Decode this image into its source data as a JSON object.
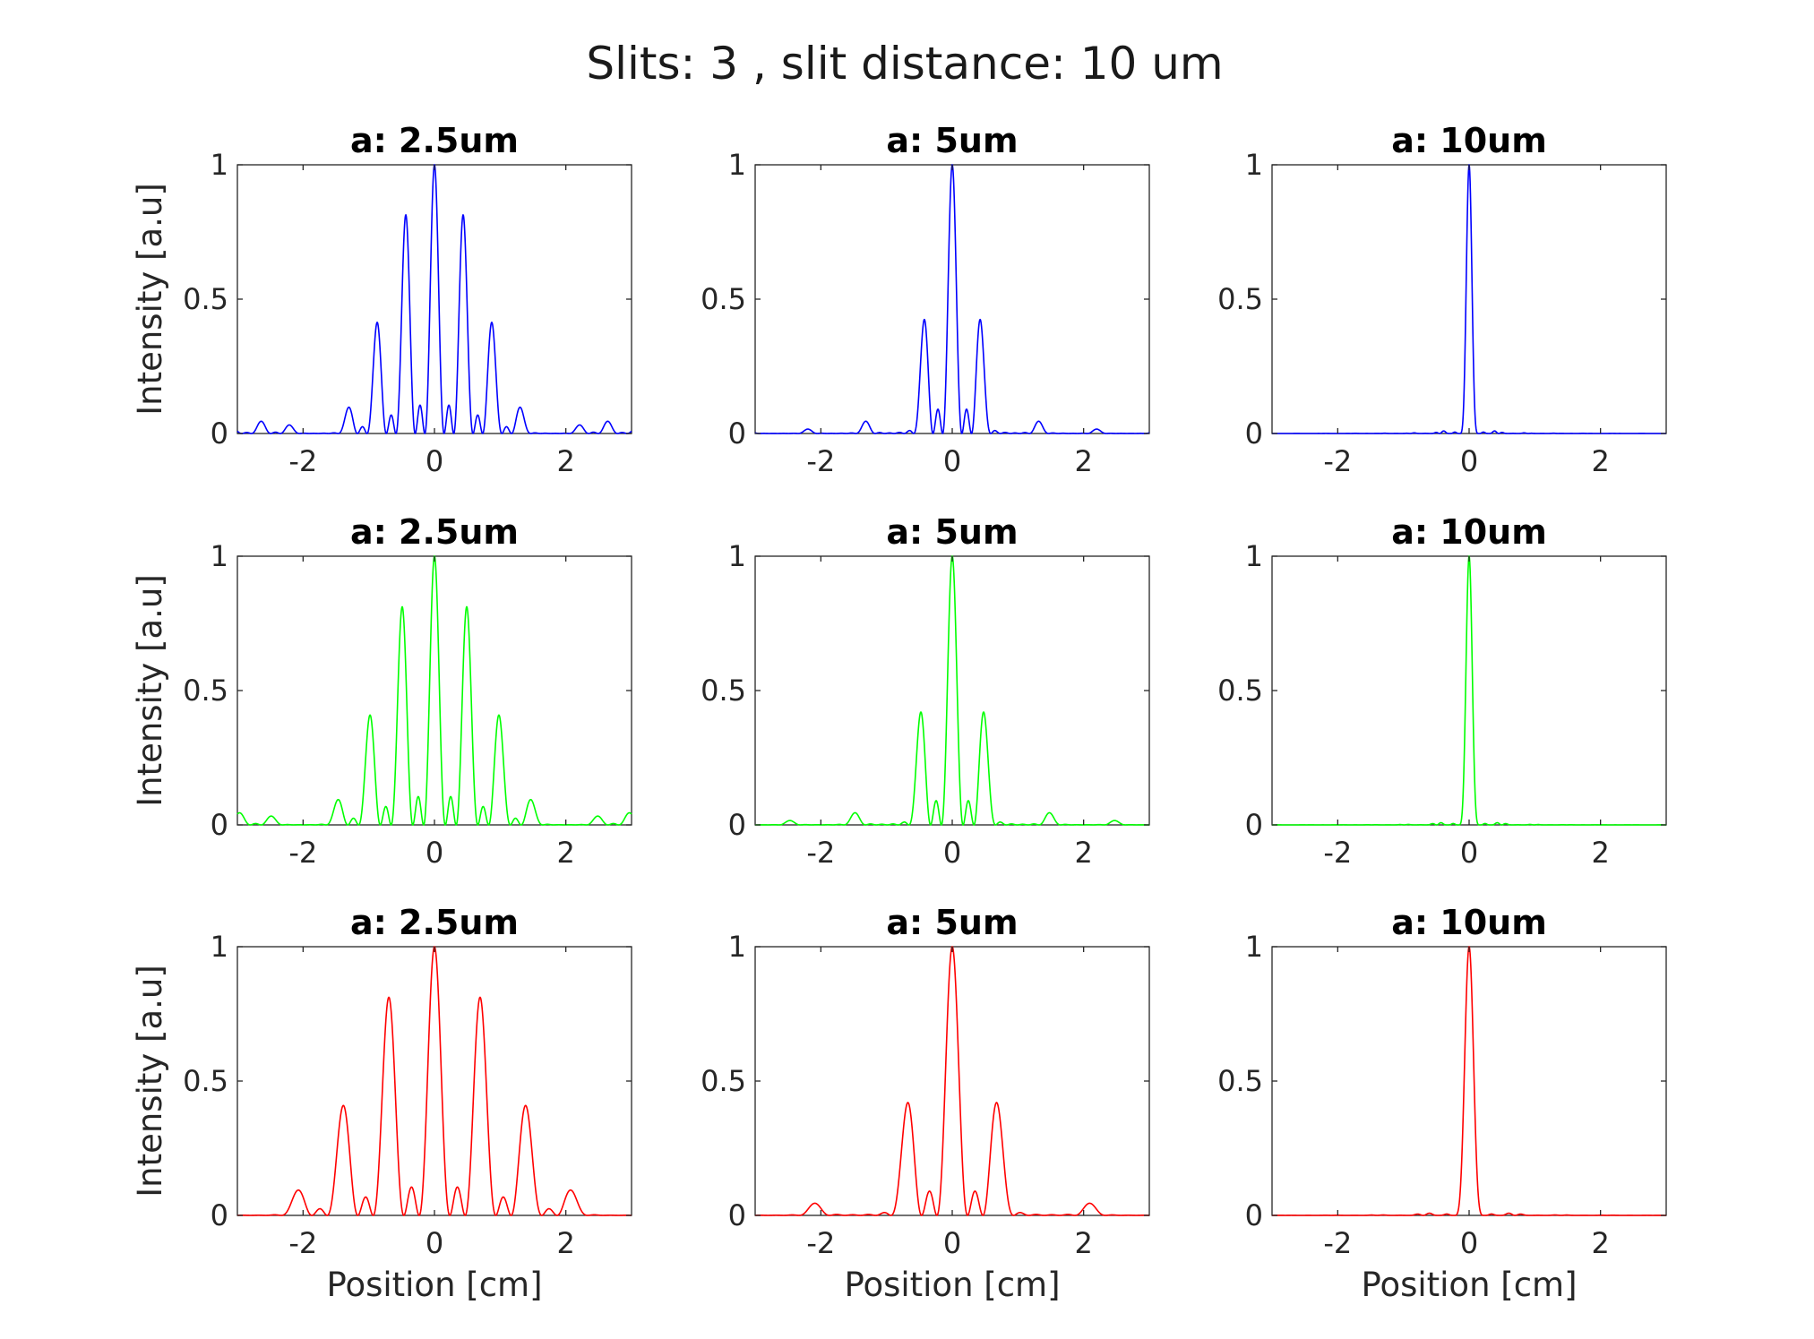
{
  "figure": {
    "title": "Slits: 3 , slit distance: 10 um",
    "xlabel": "Position [cm]",
    "ylabel": "Intensity [a.u]"
  },
  "chart_data": [
    {
      "type": "line",
      "title": "a: 2.5um",
      "xlabel": "",
      "ylabel": "Intensity [a.u]",
      "color": "#0000ff",
      "xlim": [
        -3,
        3
      ],
      "ylim": [
        0,
        1
      ],
      "xticks": [
        -2,
        0,
        2
      ],
      "yticks": [
        0,
        0.5,
        1
      ],
      "xtick_labels": [
        "-2",
        "0",
        "2"
      ],
      "ytick_labels": [
        "0",
        "0.5",
        "1"
      ],
      "grid": false,
      "model": {
        "slits": 3,
        "slit_distance_um": 10,
        "slit_width_um": 2.5,
        "fringe_period_cm": 0.44,
        "first_zero_cm": 1.77
      },
      "peaks": [
        {
          "x": -2.8,
          "y": 0.04
        },
        {
          "x": -2.3,
          "y": 0.03
        },
        {
          "x": -1.33,
          "y": 0.09
        },
        {
          "x": -1.1,
          "y": 0.01
        },
        {
          "x": -0.88,
          "y": 0.41
        },
        {
          "x": -0.66,
          "y": 0.07
        },
        {
          "x": -0.44,
          "y": 0.81
        },
        {
          "x": -0.22,
          "y": 0.1
        },
        {
          "x": 0,
          "y": 1.0
        },
        {
          "x": 0.22,
          "y": 0.1
        },
        {
          "x": 0.44,
          "y": 0.81
        },
        {
          "x": 0.66,
          "y": 0.07
        },
        {
          "x": 0.88,
          "y": 0.41
        },
        {
          "x": 1.1,
          "y": 0.01
        },
        {
          "x": 1.33,
          "y": 0.09
        },
        {
          "x": 2.3,
          "y": 0.03
        },
        {
          "x": 2.8,
          "y": 0.04
        }
      ]
    },
    {
      "type": "line",
      "title": "a: 5um",
      "xlabel": "",
      "ylabel": "",
      "color": "#0000ff",
      "xlim": [
        -3,
        3
      ],
      "ylim": [
        0,
        1
      ],
      "xticks": [
        -2,
        0,
        2
      ],
      "yticks": [
        0,
        0.5,
        1
      ],
      "xtick_labels": [
        "-2",
        "0",
        "2"
      ],
      "ytick_labels": [
        "0",
        "0.5",
        "1"
      ],
      "grid": false,
      "model": {
        "slits": 3,
        "slit_distance_um": 10,
        "slit_width_um": 5,
        "fringe_period_cm": 0.44,
        "first_zero_cm": 0.885
      },
      "peaks": [
        {
          "x": -2.3,
          "y": 0.02
        },
        {
          "x": -1.33,
          "y": 0.04
        },
        {
          "x": -0.44,
          "y": 0.42
        },
        {
          "x": -0.22,
          "y": 0.09
        },
        {
          "x": 0,
          "y": 1.0
        },
        {
          "x": 0.22,
          "y": 0.09
        },
        {
          "x": 0.44,
          "y": 0.42
        },
        {
          "x": 1.33,
          "y": 0.04
        },
        {
          "x": 2.3,
          "y": 0.02
        }
      ]
    },
    {
      "type": "line",
      "title": "a: 10um",
      "xlabel": "",
      "ylabel": "",
      "color": "#0000ff",
      "xlim": [
        -3,
        3
      ],
      "ylim": [
        0,
        1
      ],
      "xticks": [
        -2,
        0,
        2
      ],
      "yticks": [
        0,
        0.5,
        1
      ],
      "xtick_labels": [
        "-2",
        "0",
        "2"
      ],
      "ytick_labels": [
        "0",
        "0.5",
        "1"
      ],
      "grid": false,
      "model": {
        "slits": 3,
        "slit_distance_um": 10,
        "slit_width_um": 10,
        "fringe_period_cm": 0.44,
        "first_zero_cm": 0.15
      },
      "peaks": [
        {
          "x": -0.22,
          "y": 0.04
        },
        {
          "x": 0,
          "y": 1.0
        },
        {
          "x": 0.22,
          "y": 0.04
        }
      ]
    },
    {
      "type": "line",
      "title": "a: 2.5um",
      "xlabel": "",
      "ylabel": "Intensity [a.u]",
      "color": "#00ff00",
      "xlim": [
        -3,
        3
      ],
      "ylim": [
        0,
        1
      ],
      "xticks": [
        -2,
        0,
        2
      ],
      "yticks": [
        0,
        0.5,
        1
      ],
      "xtick_labels": [
        "-2",
        "0",
        "2"
      ],
      "ytick_labels": [
        "0",
        "0.5",
        "1"
      ],
      "grid": false,
      "model": {
        "slits": 3,
        "slit_distance_um": 10,
        "slit_width_um": 2.5,
        "fringe_period_cm": 0.495,
        "first_zero_cm": 1.98
      },
      "peaks": [
        {
          "x": -2.6,
          "y": 0.03
        },
        {
          "x": -1.48,
          "y": 0.09
        },
        {
          "x": -0.99,
          "y": 0.41
        },
        {
          "x": -0.74,
          "y": 0.07
        },
        {
          "x": -0.5,
          "y": 0.81
        },
        {
          "x": -0.25,
          "y": 0.1
        },
        {
          "x": 0,
          "y": 1.0
        },
        {
          "x": 0.25,
          "y": 0.1
        },
        {
          "x": 0.5,
          "y": 0.81
        },
        {
          "x": 0.74,
          "y": 0.07
        },
        {
          "x": 0.99,
          "y": 0.41
        },
        {
          "x": 1.48,
          "y": 0.09
        },
        {
          "x": 2.6,
          "y": 0.03
        }
      ]
    },
    {
      "type": "line",
      "title": "a: 5um",
      "xlabel": "",
      "ylabel": "",
      "color": "#00ff00",
      "xlim": [
        -3,
        3
      ],
      "ylim": [
        0,
        1
      ],
      "xticks": [
        -2,
        0,
        2
      ],
      "yticks": [
        0,
        0.5,
        1
      ],
      "xtick_labels": [
        "-2",
        "0",
        "2"
      ],
      "ytick_labels": [
        "0",
        "0.5",
        "1"
      ],
      "grid": false,
      "model": {
        "slits": 3,
        "slit_distance_um": 10,
        "slit_width_um": 5,
        "fringe_period_cm": 0.495,
        "first_zero_cm": 0.99
      },
      "peaks": [
        {
          "x": -2.6,
          "y": 0.01
        },
        {
          "x": -1.48,
          "y": 0.04
        },
        {
          "x": -0.5,
          "y": 0.42
        },
        {
          "x": -0.25,
          "y": 0.09
        },
        {
          "x": 0,
          "y": 1.0
        },
        {
          "x": 0.25,
          "y": 0.09
        },
        {
          "x": 0.5,
          "y": 0.42
        },
        {
          "x": 1.48,
          "y": 0.04
        },
        {
          "x": 2.6,
          "y": 0.01
        }
      ]
    },
    {
      "type": "line",
      "title": "a: 10um",
      "xlabel": "",
      "ylabel": "",
      "color": "#00ff00",
      "xlim": [
        -3,
        3
      ],
      "ylim": [
        0,
        1
      ],
      "xticks": [
        -2,
        0,
        2
      ],
      "yticks": [
        0,
        0.5,
        1
      ],
      "xtick_labels": [
        "-2",
        "0",
        "2"
      ],
      "ytick_labels": [
        "0",
        "0.5",
        "1"
      ],
      "grid": false,
      "model": {
        "slits": 3,
        "slit_distance_um": 10,
        "slit_width_um": 10,
        "fringe_period_cm": 0.495,
        "first_zero_cm": 0.165
      },
      "peaks": [
        {
          "x": -0.25,
          "y": 0.04
        },
        {
          "x": 0,
          "y": 1.0
        },
        {
          "x": 0.25,
          "y": 0.04
        }
      ]
    },
    {
      "type": "line",
      "title": "a: 2.5um",
      "xlabel": "Position [cm]",
      "ylabel": "Intensity [a.u]",
      "color": "#ff0000",
      "xlim": [
        -3,
        3
      ],
      "ylim": [
        0,
        1
      ],
      "xticks": [
        -2,
        0,
        2
      ],
      "yticks": [
        0,
        0.5,
        1
      ],
      "xtick_labels": [
        "-2",
        "0",
        "2"
      ],
      "ytick_labels": [
        "0",
        "0.5",
        "1"
      ],
      "grid": false,
      "model": {
        "slits": 3,
        "slit_distance_um": 10,
        "slit_width_um": 2.5,
        "fringe_period_cm": 0.7,
        "first_zero_cm": 2.8
      },
      "peaks": [
        {
          "x": -2.1,
          "y": 0.09
        },
        {
          "x": -1.4,
          "y": 0.41
        },
        {
          "x": -1.05,
          "y": 0.07
        },
        {
          "x": -0.7,
          "y": 0.81
        },
        {
          "x": -0.35,
          "y": 0.1
        },
        {
          "x": 0,
          "y": 1.0
        },
        {
          "x": 0.35,
          "y": 0.1
        },
        {
          "x": 0.7,
          "y": 0.81
        },
        {
          "x": 1.05,
          "y": 0.07
        },
        {
          "x": 1.4,
          "y": 0.41
        },
        {
          "x": 2.1,
          "y": 0.09
        }
      ]
    },
    {
      "type": "line",
      "title": "a: 5um",
      "xlabel": "Position [cm]",
      "ylabel": "",
      "color": "#ff0000",
      "xlim": [
        -3,
        3
      ],
      "ylim": [
        0,
        1
      ],
      "xticks": [
        -2,
        0,
        2
      ],
      "yticks": [
        0,
        0.5,
        1
      ],
      "xtick_labels": [
        "-2",
        "0",
        "2"
      ],
      "ytick_labels": [
        "0",
        "0.5",
        "1"
      ],
      "grid": false,
      "model": {
        "slits": 3,
        "slit_distance_um": 10,
        "slit_width_um": 5,
        "fringe_period_cm": 0.7,
        "first_zero_cm": 1.4
      },
      "peaks": [
        {
          "x": -2.1,
          "y": 0.04
        },
        {
          "x": -0.7,
          "y": 0.42
        },
        {
          "x": -0.35,
          "y": 0.09
        },
        {
          "x": 0,
          "y": 1.0
        },
        {
          "x": 0.35,
          "y": 0.09
        },
        {
          "x": 0.7,
          "y": 0.42
        },
        {
          "x": 2.1,
          "y": 0.04
        }
      ]
    },
    {
      "type": "line",
      "title": "a: 10um",
      "xlabel": "Position [cm]",
      "ylabel": "",
      "color": "#ff0000",
      "xlim": [
        -3,
        3
      ],
      "ylim": [
        0,
        1
      ],
      "xticks": [
        -2,
        0,
        2
      ],
      "yticks": [
        0,
        0.5,
        1
      ],
      "xtick_labels": [
        "-2",
        "0",
        "2"
      ],
      "ytick_labels": [
        "0",
        "0.5",
        "1"
      ],
      "grid": false,
      "model": {
        "slits": 3,
        "slit_distance_um": 10,
        "slit_width_um": 10,
        "fringe_period_cm": 0.7,
        "first_zero_cm": 0.233
      },
      "peaks": [
        {
          "x": -0.35,
          "y": 0.04
        },
        {
          "x": 0,
          "y": 1.0
        },
        {
          "x": 0.35,
          "y": 0.04
        }
      ]
    }
  ]
}
